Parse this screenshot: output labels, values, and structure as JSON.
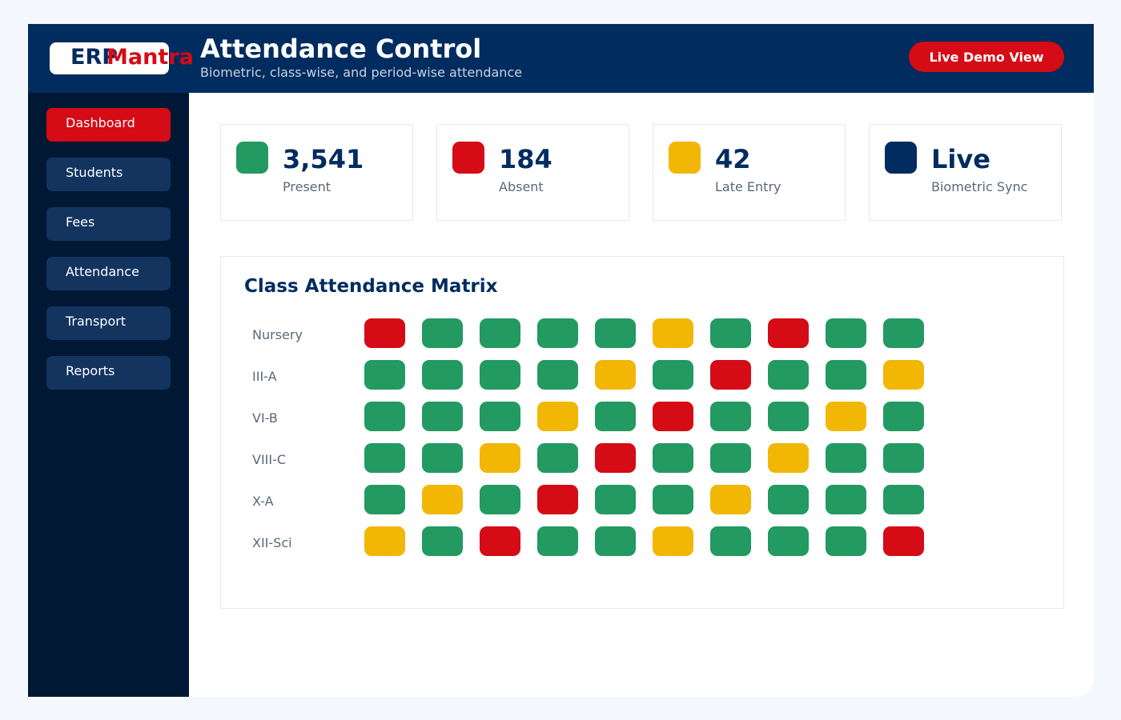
{
  "brand": {
    "logo_part1": "ERP",
    "logo_part2": "Mantra"
  },
  "header": {
    "title": "Attendance Control",
    "subtitle": "Biometric, class-wise, and period-wise attendance",
    "demo_button_label": "Live Demo View"
  },
  "sidebar": {
    "items": [
      {
        "label": "Dashboard",
        "active": true
      },
      {
        "label": "Students",
        "active": false
      },
      {
        "label": "Fees",
        "active": false
      },
      {
        "label": "Attendance",
        "active": false
      },
      {
        "label": "Transport",
        "active": false
      },
      {
        "label": "Reports",
        "active": false
      }
    ]
  },
  "stats": [
    {
      "value": "3,541",
      "label": "Present",
      "color": "#229a61"
    },
    {
      "value": "184",
      "label": "Absent",
      "color": "#d50b16"
    },
    {
      "value": "42",
      "label": "Late Entry",
      "color": "#f2b705"
    },
    {
      "value": "Live",
      "label": "Biometric Sync",
      "color": "#002c5f"
    }
  ],
  "colors": {
    "present": "#229a61",
    "absent": "#d50b16",
    "late": "#f2b705",
    "brand_navy": "#002c5f",
    "accent_red": "#d50b16"
  },
  "matrix": {
    "title": "Class Attendance Matrix",
    "rows": [
      {
        "label": "Nursery",
        "cells": [
          "absent",
          "present",
          "present",
          "present",
          "present",
          "late",
          "present",
          "absent",
          "present",
          "present"
        ]
      },
      {
        "label": "III-A",
        "cells": [
          "present",
          "present",
          "present",
          "present",
          "late",
          "present",
          "absent",
          "present",
          "present",
          "late"
        ]
      },
      {
        "label": "VI-B",
        "cells": [
          "present",
          "present",
          "present",
          "late",
          "present",
          "absent",
          "present",
          "present",
          "late",
          "present"
        ]
      },
      {
        "label": "VIII-C",
        "cells": [
          "present",
          "present",
          "late",
          "present",
          "absent",
          "present",
          "present",
          "late",
          "present",
          "present"
        ]
      },
      {
        "label": "X-A",
        "cells": [
          "present",
          "late",
          "present",
          "absent",
          "present",
          "present",
          "late",
          "present",
          "present",
          "present"
        ]
      },
      {
        "label": "XII-Sci",
        "cells": [
          "late",
          "present",
          "absent",
          "present",
          "present",
          "late",
          "present",
          "present",
          "present",
          "absent"
        ]
      }
    ]
  }
}
